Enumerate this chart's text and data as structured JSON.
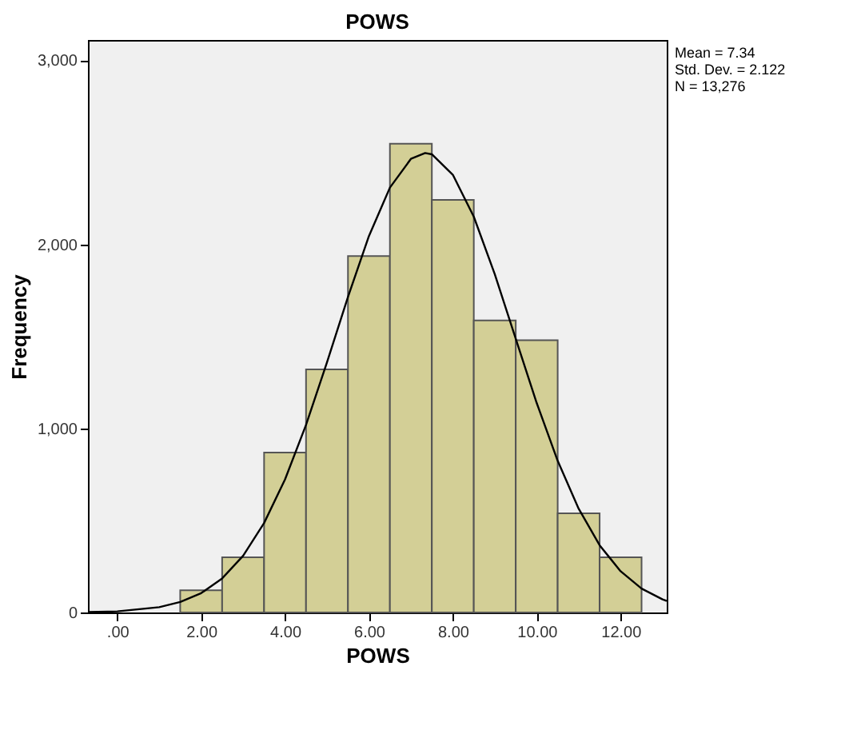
{
  "chart_data": {
    "type": "histogram",
    "title": "POWS",
    "xlabel": "POWS",
    "ylabel": "Frequency",
    "bins": [
      1.5,
      2.5,
      3.5,
      4.5,
      5.5,
      6.5,
      7.5,
      8.5,
      9.5,
      10.5,
      11.5,
      12.5
    ],
    "values": [
      121,
      300,
      869,
      1320,
      1936,
      2546,
      2241,
      1586,
      1479,
      539,
      300
    ],
    "color": "#d3cf96",
    "series": [
      {
        "type": "line",
        "color": "#000000",
        "x": [
          -0.7,
          0,
          1,
          1.5,
          2,
          2.5,
          3,
          3.5,
          4,
          4.5,
          5,
          5.5,
          6,
          6.5,
          7,
          7.34,
          7.5,
          8,
          8.5,
          9,
          9.5,
          10,
          10.5,
          11,
          11.5,
          12,
          12.5,
          13,
          13.1
        ],
        "values": [
          2,
          6,
          29,
          57,
          105,
          185,
          308,
          486,
          723,
          1019,
          1359,
          1714,
          2045,
          2308,
          2464,
          2496,
          2489,
          2378,
          2150,
          1838,
          1487,
          1138,
          824,
          564,
          365,
          224,
          130,
          71,
          63
        ]
      }
    ],
    "xlim": [
      -0.7,
      13.1
    ],
    "ylim": [
      0,
      3110
    ],
    "xticks": [
      {
        "value": 0,
        "label": ".00"
      },
      {
        "value": 2,
        "label": "2.00"
      },
      {
        "value": 4,
        "label": "4.00"
      },
      {
        "value": 6,
        "label": "6.00"
      },
      {
        "value": 8,
        "label": "8.00"
      },
      {
        "value": 10,
        "label": "10.00"
      },
      {
        "value": 12,
        "label": "12.00"
      }
    ],
    "yticks": [
      {
        "value": 0,
        "label": "0"
      },
      {
        "value": 1000,
        "label": "1,000"
      },
      {
        "value": 2000,
        "label": "2,000"
      },
      {
        "value": 3000,
        "label": "3,000"
      }
    ],
    "annotations": [
      "Mean = 7.34",
      "Std. Dev. = 2.122",
      "N = 13,276"
    ],
    "grid": false
  }
}
